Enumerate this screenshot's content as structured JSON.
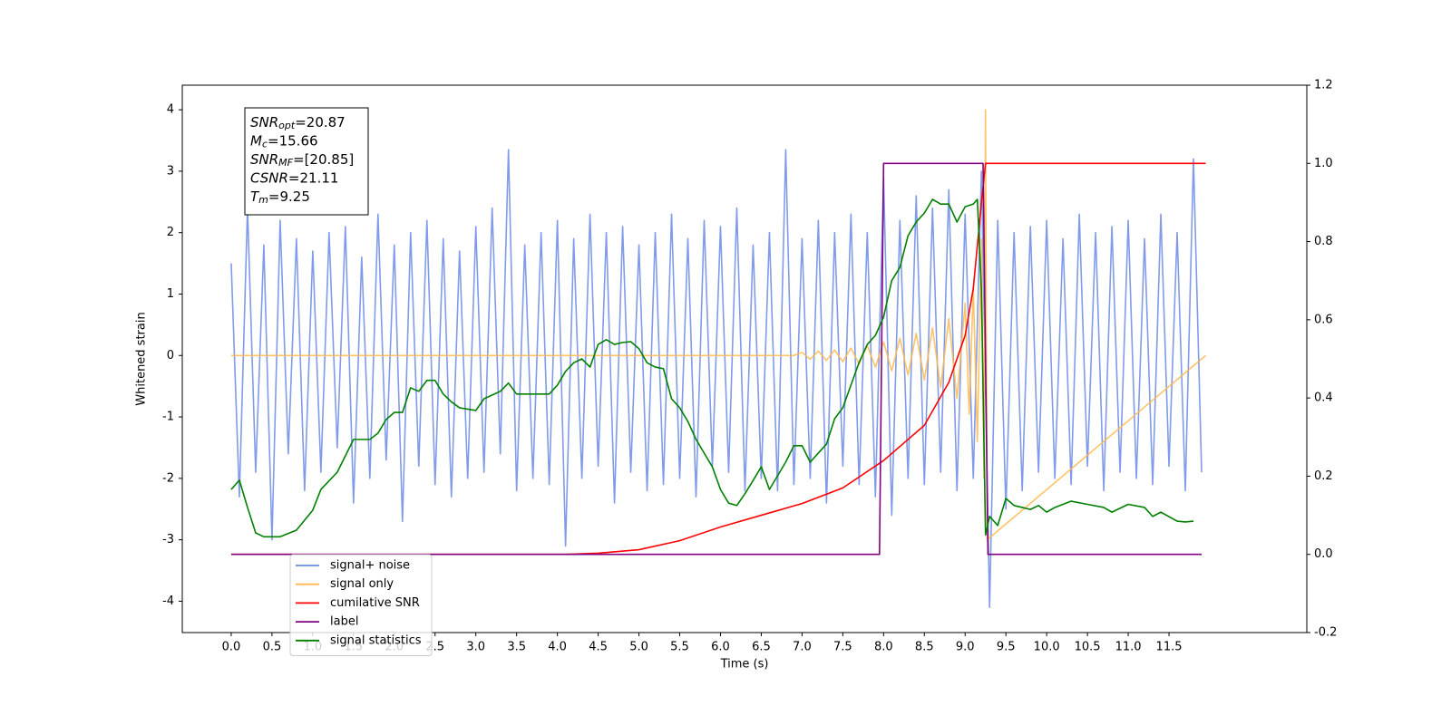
{
  "chart_data": {
    "type": "line",
    "xlabel": "Time (s)",
    "ylabel": "Whitened strain",
    "xlim": [
      -0.6,
      13.19
    ],
    "ylim": [
      -4.51,
      4.4
    ],
    "y2lim": [
      -0.2,
      1.2
    ],
    "xticks": [
      {
        "value": 0,
        "label": "0.0"
      },
      0.5,
      {
        "value": 1,
        "label": "1.0"
      },
      1.5,
      {
        "value": 2,
        "label": "2.0"
      },
      2.5,
      {
        "value": 3,
        "label": "3.0"
      },
      3.5,
      {
        "value": 4,
        "label": "4.0"
      },
      4.5,
      {
        "value": 5,
        "label": "5.0"
      },
      5.5,
      {
        "value": 6,
        "label": "6.0"
      },
      6.5,
      {
        "value": 7,
        "label": "7.0"
      },
      7.5,
      {
        "value": 8,
        "label": "8.0"
      },
      8.5,
      {
        "value": 9,
        "label": "9.0"
      },
      9.5,
      {
        "value": 10,
        "label": "10.0"
      },
      10.5,
      {
        "value": 11,
        "label": "11.0"
      },
      11.5
    ],
    "yticks": [
      -4,
      -3,
      -2,
      -1,
      0,
      1,
      2,
      3,
      4
    ],
    "y2ticks": [
      -0.2,
      {
        "value": 0,
        "label": "0.0"
      },
      0.2,
      0.4,
      0.6,
      0.8,
      {
        "value": 1,
        "label": "1.0"
      },
      1.2
    ],
    "legend_loc": "lower left",
    "annotation": [
      {
        "symbol": "SNR",
        "subscript": "opt",
        "text": "=20.87"
      },
      {
        "symbol": "M",
        "subscript": "c",
        "text": "=15.66"
      },
      {
        "symbol": "SNR",
        "subscript": "MF",
        "text": "=[20.85]"
      },
      {
        "symbol": "CSNR",
        "text": "=21.11"
      },
      {
        "symbol": "T",
        "subscript": "m",
        "text": "=9.25"
      }
    ],
    "series": [
      {
        "name": "signal+ noise",
        "color": "#6b8ae6",
        "axis": "y",
        "x": [
          0.0,
          0.1,
          0.2,
          0.3,
          0.4,
          0.5,
          0.6,
          0.7,
          0.8,
          0.9,
          1.0,
          1.1,
          1.2,
          1.3,
          1.4,
          1.5,
          1.6,
          1.7,
          1.8,
          1.9,
          2.0,
          2.1,
          2.2,
          2.3,
          2.4,
          2.5,
          2.6,
          2.7,
          2.8,
          2.9,
          3.0,
          3.1,
          3.2,
          3.3,
          3.4,
          3.5,
          3.6,
          3.7,
          3.8,
          3.9,
          4.0,
          4.1,
          4.2,
          4.3,
          4.4,
          4.5,
          4.6,
          4.7,
          4.8,
          4.9,
          5.0,
          5.1,
          5.2,
          5.3,
          5.4,
          5.5,
          5.6,
          5.7,
          5.8,
          5.9,
          6.0,
          6.1,
          6.2,
          6.3,
          6.4,
          6.5,
          6.6,
          6.7,
          6.8,
          6.9,
          7.0,
          7.1,
          7.2,
          7.3,
          7.4,
          7.5,
          7.6,
          7.7,
          7.8,
          7.9,
          8.0,
          8.1,
          8.2,
          8.3,
          8.4,
          8.5,
          8.6,
          8.7,
          8.8,
          8.9,
          9.0,
          9.1,
          9.2,
          9.3,
          9.4,
          9.5,
          9.6,
          9.7,
          9.8,
          9.9,
          10.0,
          10.1,
          10.2,
          10.3,
          10.4,
          10.5,
          10.6,
          10.7,
          10.8,
          10.9,
          11.0,
          11.1,
          11.2,
          11.3,
          11.4,
          11.5,
          11.6,
          11.7,
          11.8,
          11.9
        ],
        "values": [
          1.5,
          -2.3,
          2.4,
          -1.9,
          1.8,
          -3.0,
          2.2,
          -1.6,
          1.9,
          -2.2,
          1.7,
          -1.9,
          2.0,
          -1.5,
          2.1,
          -2.4,
          1.6,
          -2.0,
          2.3,
          -1.7,
          1.8,
          -2.7,
          2.0,
          -1.8,
          2.2,
          -2.1,
          1.9,
          -2.3,
          1.7,
          -2.0,
          2.1,
          -1.9,
          2.4,
          -1.6,
          3.35,
          -2.2,
          1.8,
          -2.0,
          2.0,
          -2.1,
          2.2,
          -3.1,
          1.9,
          -2.0,
          2.3,
          -1.8,
          2.0,
          -2.4,
          2.1,
          -1.9,
          1.8,
          -2.2,
          2.0,
          -2.1,
          2.3,
          -2.0,
          1.9,
          -2.3,
          2.2,
          -1.8,
          2.1,
          -1.9,
          2.4,
          -2.2,
          1.8,
          -2.0,
          2.0,
          -2.2,
          3.35,
          -2.1,
          1.9,
          -2.0,
          2.2,
          -2.4,
          2.0,
          -1.8,
          2.3,
          -2.1,
          2.0,
          -2.3,
          2.9,
          -2.6,
          2.2,
          -2.0,
          2.6,
          -2.1,
          2.4,
          -1.9,
          2.7,
          -2.2,
          2.3,
          -2.0,
          3.0,
          -4.1,
          2.2,
          -2.5,
          2.0,
          -2.2,
          2.1,
          -1.9,
          2.2,
          -2.0,
          1.9,
          -2.1,
          2.3,
          -1.8,
          2.0,
          -2.2,
          2.1,
          -1.9,
          2.2,
          -2.0,
          1.9,
          -2.1,
          2.3,
          -1.8,
          2.0,
          -2.2,
          3.2,
          -1.9
        ]
      },
      {
        "name": "signal only",
        "color": "#ffb84d",
        "axis": "y",
        "x": [
          0,
          6.9,
          7.0,
          7.1,
          7.2,
          7.3,
          7.4,
          7.5,
          7.6,
          7.7,
          7.8,
          7.9,
          8.0,
          8.1,
          8.2,
          8.3,
          8.4,
          8.5,
          8.6,
          8.7,
          8.8,
          8.9,
          9.0,
          9.05,
          9.1,
          9.15,
          9.2,
          9.23,
          9.25,
          9.27,
          11.95
        ],
        "values": [
          0,
          0,
          0.05,
          -0.06,
          0.07,
          -0.08,
          0.09,
          -0.1,
          0.12,
          -0.14,
          0.16,
          -0.19,
          0.22,
          -0.25,
          0.28,
          -0.32,
          0.36,
          -0.4,
          0.45,
          -0.52,
          0.6,
          -0.7,
          0.85,
          -0.95,
          1.1,
          -1.4,
          1.9,
          -2.0,
          4.0,
          -3.0,
          0
        ]
      },
      {
        "name": "cumilative SNR",
        "color": "#ff0000",
        "axis": "y2",
        "x": [
          0,
          4.1,
          4.5,
          5.0,
          5.5,
          6.0,
          6.5,
          7.0,
          7.5,
          8.0,
          8.5,
          8.8,
          9.0,
          9.1,
          9.2,
          9.25,
          11.95
        ],
        "values": [
          0,
          0,
          0.003,
          0.012,
          0.035,
          0.07,
          0.1,
          0.13,
          0.17,
          0.24,
          0.33,
          0.44,
          0.56,
          0.68,
          0.9,
          1.0,
          1.0
        ]
      },
      {
        "name": "label",
        "color": "#800080",
        "axis": "y2",
        "x": [
          0,
          7.95,
          8.0,
          9.22,
          9.28,
          11.9
        ],
        "values": [
          0,
          0,
          1,
          1,
          0,
          0
        ]
      },
      {
        "name": "signal statistics",
        "color": "#008000",
        "axis": "y2",
        "x": [
          0.0,
          0.1,
          0.2,
          0.3,
          0.4,
          0.6,
          0.8,
          1.0,
          1.1,
          1.3,
          1.5,
          1.7,
          1.8,
          1.9,
          2.0,
          2.1,
          2.2,
          2.3,
          2.4,
          2.5,
          2.6,
          2.7,
          2.8,
          3.0,
          3.1,
          3.3,
          3.4,
          3.5,
          3.7,
          3.9,
          4.0,
          4.1,
          4.2,
          4.3,
          4.4,
          4.5,
          4.6,
          4.7,
          4.8,
          4.9,
          5.0,
          5.1,
          5.2,
          5.3,
          5.4,
          5.5,
          5.6,
          5.7,
          5.8,
          5.9,
          6.0,
          6.1,
          6.2,
          6.3,
          6.4,
          6.5,
          6.6,
          6.7,
          6.8,
          6.9,
          7.0,
          7.1,
          7.2,
          7.3,
          7.4,
          7.5,
          7.6,
          7.7,
          7.8,
          7.9,
          8.0,
          8.1,
          8.2,
          8.3,
          8.4,
          8.5,
          8.6,
          8.7,
          8.8,
          8.9,
          9.0,
          9.1,
          9.15,
          9.2,
          9.25,
          9.3,
          9.4,
          9.5,
          9.6,
          9.7,
          9.8,
          9.9,
          10.0,
          10.1,
          10.3,
          10.5,
          10.7,
          10.8,
          11.0,
          11.2,
          11.3,
          11.4,
          11.6,
          11.7,
          11.8
        ],
        "values": [
          0.166,
          0.19,
          0.12,
          0.055,
          0.045,
          0.045,
          0.062,
          0.113,
          0.166,
          0.21,
          0.294,
          0.294,
          0.31,
          0.345,
          0.363,
          0.363,
          0.426,
          0.417,
          0.445,
          0.445,
          0.41,
          0.39,
          0.375,
          0.368,
          0.398,
          0.417,
          0.438,
          0.41,
          0.41,
          0.41,
          0.433,
          0.468,
          0.49,
          0.5,
          0.479,
          0.537,
          0.549,
          0.537,
          0.542,
          0.544,
          0.526,
          0.49,
          0.479,
          0.475,
          0.398,
          0.375,
          0.34,
          0.294,
          0.259,
          0.224,
          0.166,
          0.131,
          0.125,
          0.155,
          0.189,
          0.224,
          0.166,
          0.201,
          0.236,
          0.278,
          0.278,
          0.236,
          0.259,
          0.282,
          0.347,
          0.375,
          0.433,
          0.491,
          0.537,
          0.56,
          0.607,
          0.7,
          0.734,
          0.815,
          0.85,
          0.873,
          0.908,
          0.896,
          0.896,
          0.85,
          0.889,
          0.896,
          0.908,
          0.676,
          0.05,
          0.097,
          0.074,
          0.143,
          0.125,
          0.12,
          0.115,
          0.125,
          0.108,
          0.12,
          0.136,
          0.128,
          0.12,
          0.108,
          0.128,
          0.12,
          0.097,
          0.108,
          0.085,
          0.083,
          0.085
        ]
      }
    ]
  }
}
